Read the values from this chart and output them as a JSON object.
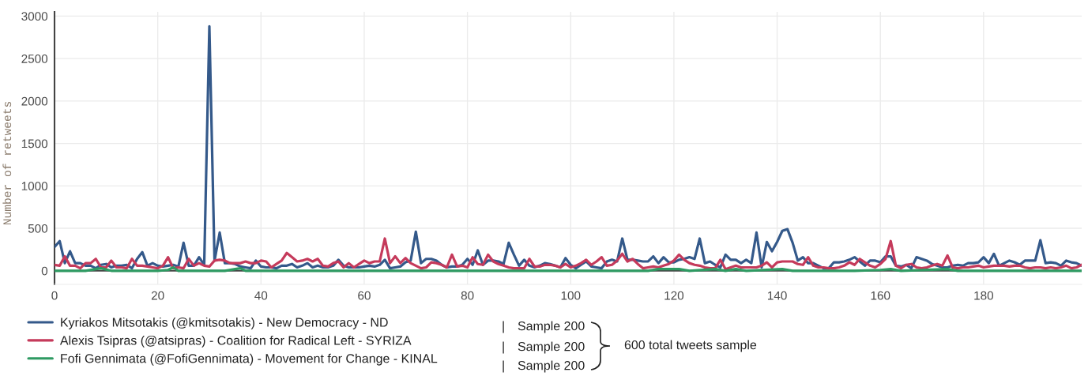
{
  "chart_data": {
    "type": "line",
    "ylabel": "Number of retweets",
    "x": [
      0,
      1,
      2,
      3,
      4,
      5,
      6,
      7,
      8,
      9,
      10,
      11,
      12,
      13,
      14,
      15,
      16,
      17,
      18,
      19,
      20,
      21,
      22,
      23,
      24,
      25,
      26,
      27,
      28,
      29,
      30,
      31,
      32,
      33,
      34,
      35,
      36,
      37,
      38,
      39,
      40,
      41,
      42,
      43,
      44,
      45,
      46,
      47,
      48,
      49,
      50,
      51,
      52,
      53,
      54,
      55,
      56,
      57,
      58,
      59,
      60,
      61,
      62,
      63,
      64,
      65,
      66,
      67,
      68,
      69,
      70,
      71,
      72,
      73,
      74,
      75,
      76,
      77,
      78,
      79,
      80,
      81,
      82,
      83,
      84,
      85,
      86,
      87,
      88,
      89,
      90,
      91,
      92,
      93,
      94,
      95,
      96,
      97,
      98,
      99,
      100,
      101,
      102,
      103,
      104,
      105,
      106,
      107,
      108,
      109,
      110,
      111,
      112,
      113,
      114,
      115,
      116,
      117,
      118,
      119,
      120,
      121,
      122,
      123,
      124,
      125,
      126,
      127,
      128,
      129,
      130,
      131,
      132,
      133,
      134,
      135,
      136,
      137,
      138,
      139,
      140,
      141,
      142,
      143,
      144,
      145,
      146,
      147,
      148,
      149,
      150,
      151,
      152,
      153,
      154,
      155,
      156,
      157,
      158,
      159,
      160,
      161,
      162,
      163,
      164,
      165,
      166,
      167,
      168,
      169,
      170,
      171,
      172,
      173,
      174,
      175,
      176,
      177,
      178,
      179,
      180,
      181,
      182,
      183,
      184,
      185,
      186,
      187,
      188,
      189,
      190,
      191,
      192,
      193,
      194,
      195,
      196,
      197,
      198,
      199
    ],
    "series": [
      {
        "name": "Kyriakos Mitsotakis (@kmitsotakis) - New Democracy - ND",
        "color": "#34598a",
        "values": [
          280,
          350,
          90,
          230,
          90,
          90,
          60,
          60,
          30,
          70,
          80,
          40,
          60,
          60,
          70,
          30,
          140,
          220,
          60,
          90,
          60,
          50,
          60,
          70,
          50,
          330,
          60,
          60,
          160,
          70,
          2880,
          120,
          450,
          90,
          90,
          80,
          50,
          40,
          30,
          120,
          50,
          40,
          40,
          30,
          60,
          60,
          80,
          40,
          60,
          90,
          40,
          60,
          40,
          40,
          60,
          130,
          60,
          40,
          40,
          40,
          50,
          60,
          50,
          70,
          130,
          30,
          40,
          50,
          100,
          120,
          460,
          90,
          140,
          140,
          120,
          70,
          40,
          50,
          50,
          70,
          140,
          70,
          240,
          70,
          120,
          120,
          110,
          80,
          330,
          190,
          60,
          130,
          60,
          40,
          60,
          90,
          80,
          60,
          40,
          150,
          70,
          30,
          70,
          110,
          50,
          40,
          30,
          110,
          130,
          110,
          380,
          130,
          130,
          120,
          110,
          110,
          170,
          90,
          160,
          100,
          100,
          130,
          140,
          160,
          140,
          380,
          90,
          110,
          70,
          40,
          190,
          130,
          130,
          90,
          130,
          90,
          450,
          40,
          340,
          230,
          340,
          470,
          490,
          330,
          120,
          160,
          90,
          90,
          60,
          30,
          30,
          100,
          100,
          110,
          130,
          160,
          110,
          60,
          120,
          120,
          100,
          170,
          170,
          60,
          50,
          70,
          30,
          160,
          140,
          120,
          80,
          60,
          40,
          40,
          60,
          70,
          60,
          90,
          90,
          100,
          160,
          90,
          200,
          60,
          90,
          120,
          100,
          70,
          120,
          120,
          120,
          360,
          90,
          100,
          90,
          60,
          120,
          100,
          90,
          60
        ]
      },
      {
        "name": "Alexis Tsipras (@atsipras) - Coalition for Radical Left - SYRIZA",
        "color": "#c53a5b",
        "values": [
          70,
          60,
          170,
          60,
          60,
          30,
          90,
          90,
          140,
          40,
          40,
          120,
          40,
          40,
          30,
          140,
          60,
          60,
          50,
          40,
          30,
          60,
          160,
          30,
          40,
          30,
          140,
          60,
          90,
          60,
          50,
          120,
          130,
          120,
          90,
          90,
          90,
          110,
          90,
          90,
          120,
          110,
          40,
          80,
          120,
          210,
          160,
          110,
          120,
          140,
          110,
          140,
          60,
          50,
          90,
          110,
          40,
          90,
          40,
          80,
          120,
          90,
          110,
          110,
          380,
          90,
          170,
          90,
          150,
          90,
          60,
          30,
          40,
          100,
          90,
          70,
          40,
          190,
          50,
          60,
          40,
          160,
          80,
          70,
          190,
          110,
          80,
          60,
          40,
          30,
          30,
          30,
          140,
          50,
          50,
          70,
          70,
          60,
          40,
          80,
          40,
          60,
          90,
          130,
          70,
          110,
          160,
          60,
          70,
          120,
          200,
          110,
          140,
          80,
          30,
          40,
          50,
          40,
          60,
          80,
          120,
          190,
          130,
          90,
          70,
          60,
          40,
          30,
          30,
          130,
          20,
          40,
          60,
          40,
          40,
          40,
          40,
          60,
          100,
          40,
          100,
          110,
          110,
          110,
          80,
          70,
          160,
          60,
          40,
          40,
          30,
          30,
          40,
          60,
          100,
          70,
          140,
          100,
          60,
          40,
          80,
          140,
          350,
          60,
          30,
          70,
          80,
          40,
          30,
          40,
          60,
          80,
          60,
          180,
          40,
          30,
          40,
          40,
          50,
          60,
          40,
          50,
          60,
          60,
          60,
          50,
          60,
          60,
          40,
          30,
          40,
          40,
          30,
          40,
          30,
          40,
          60,
          30,
          40,
          70
        ]
      },
      {
        "name": "Fofi Gennimata (@FofiGennimata) - Movement for Change - KINAL",
        "color": "#2e9a62",
        "x": [
          0,
          3,
          6,
          8,
          9,
          11,
          20,
          22,
          23,
          24,
          33,
          35,
          36,
          37,
          60,
          65,
          70,
          72,
          75,
          100,
          110,
          115,
          117,
          119,
          121,
          123,
          128,
          130,
          132,
          134,
          141,
          143,
          150,
          155,
          160,
          162,
          164,
          173,
          175,
          190,
          199
        ],
        "values": [
          0,
          0,
          0,
          20,
          30,
          0,
          0,
          10,
          40,
          0,
          0,
          20,
          30,
          0,
          0,
          0,
          0,
          0,
          0,
          0,
          0,
          0,
          20,
          20,
          20,
          0,
          20,
          0,
          20,
          0,
          20,
          0,
          0,
          0,
          10,
          20,
          0,
          20,
          0,
          0,
          0
        ]
      }
    ],
    "xlim": [
      0,
      199
    ],
    "xticks": [
      0,
      20,
      40,
      60,
      80,
      100,
      120,
      140,
      160,
      180
    ],
    "ylim": [
      -160,
      3050
    ],
    "yticks": [
      0,
      500,
      1000,
      1500,
      2000,
      2500,
      3000
    ],
    "ref_lines": [
      {
        "axis": "y",
        "value": 0,
        "color": "#444444"
      }
    ],
    "grid": true,
    "legend": "bottom left",
    "annotations": [
      "|",
      "|",
      "|",
      "Sample 200",
      "Sample 200",
      "Sample 200",
      "600 total tweets sample"
    ]
  }
}
